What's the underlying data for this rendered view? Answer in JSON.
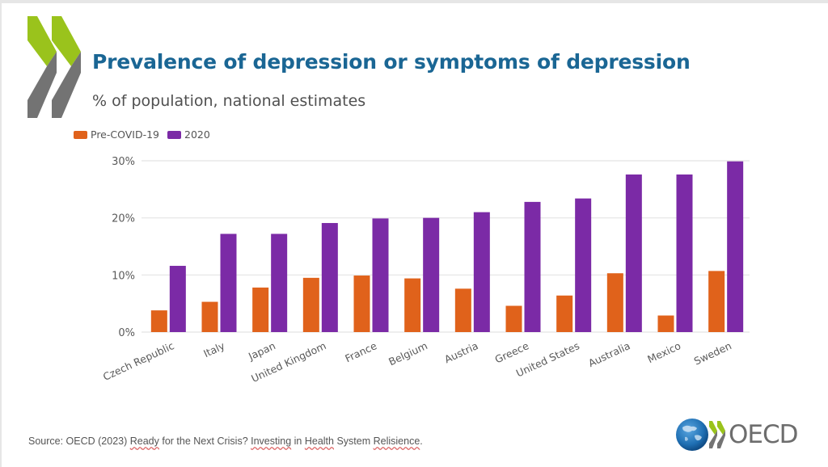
{
  "header": {
    "title": "Prevalence of depression or symptoms of depression",
    "subtitle": "% of population, national estimates"
  },
  "logo": {
    "top_icon": "oecd-chevrons-icon",
    "bottom_icon": "oecd-globe-icon",
    "wordmark": "OECD",
    "colors": {
      "green": "#9ac31c",
      "gray": "#737373",
      "globe": "#1f6fb3"
    }
  },
  "legend": {
    "items": [
      {
        "label": "Pre-COVID-19",
        "color": "#e0621b"
      },
      {
        "label": "2020",
        "color": "#7b2aa6"
      }
    ]
  },
  "source": {
    "prefix": "Source: OECD (2023) ",
    "w1": "Ready",
    "t1": " for the Next Crisis? ",
    "w2": "Investing",
    "t2": " in ",
    "w3": "Health",
    "t3": " System ",
    "w4": "Relisience",
    "t4": "."
  },
  "chart_data": {
    "type": "bar",
    "title": "Prevalence of depression or symptoms of depression",
    "subtitle": "% of population, national estimates",
    "xlabel": "",
    "ylabel": "",
    "ylim": [
      0,
      30
    ],
    "yticks": [
      0,
      10,
      20,
      30
    ],
    "ytick_labels": [
      "0%",
      "10%",
      "20%",
      "30%"
    ],
    "grid": true,
    "legend_position": "top-left",
    "categories": [
      "Czech Republic",
      "Italy",
      "Japan",
      "United Kingdom",
      "France",
      "Belgium",
      "Austria",
      "Greece",
      "United States",
      "Australia",
      "Mexico",
      "Sweden"
    ],
    "series": [
      {
        "name": "Pre-COVID-19",
        "color": "#e0621b",
        "values": [
          3.8,
          5.3,
          7.8,
          9.5,
          9.9,
          9.4,
          7.6,
          4.6,
          6.4,
          10.3,
          2.9,
          10.7
        ]
      },
      {
        "name": "2020",
        "color": "#7b2aa6",
        "values": [
          11.6,
          17.2,
          17.2,
          19.1,
          19.9,
          20.0,
          21.0,
          22.8,
          23.4,
          27.6,
          27.6,
          29.9
        ]
      }
    ]
  }
}
